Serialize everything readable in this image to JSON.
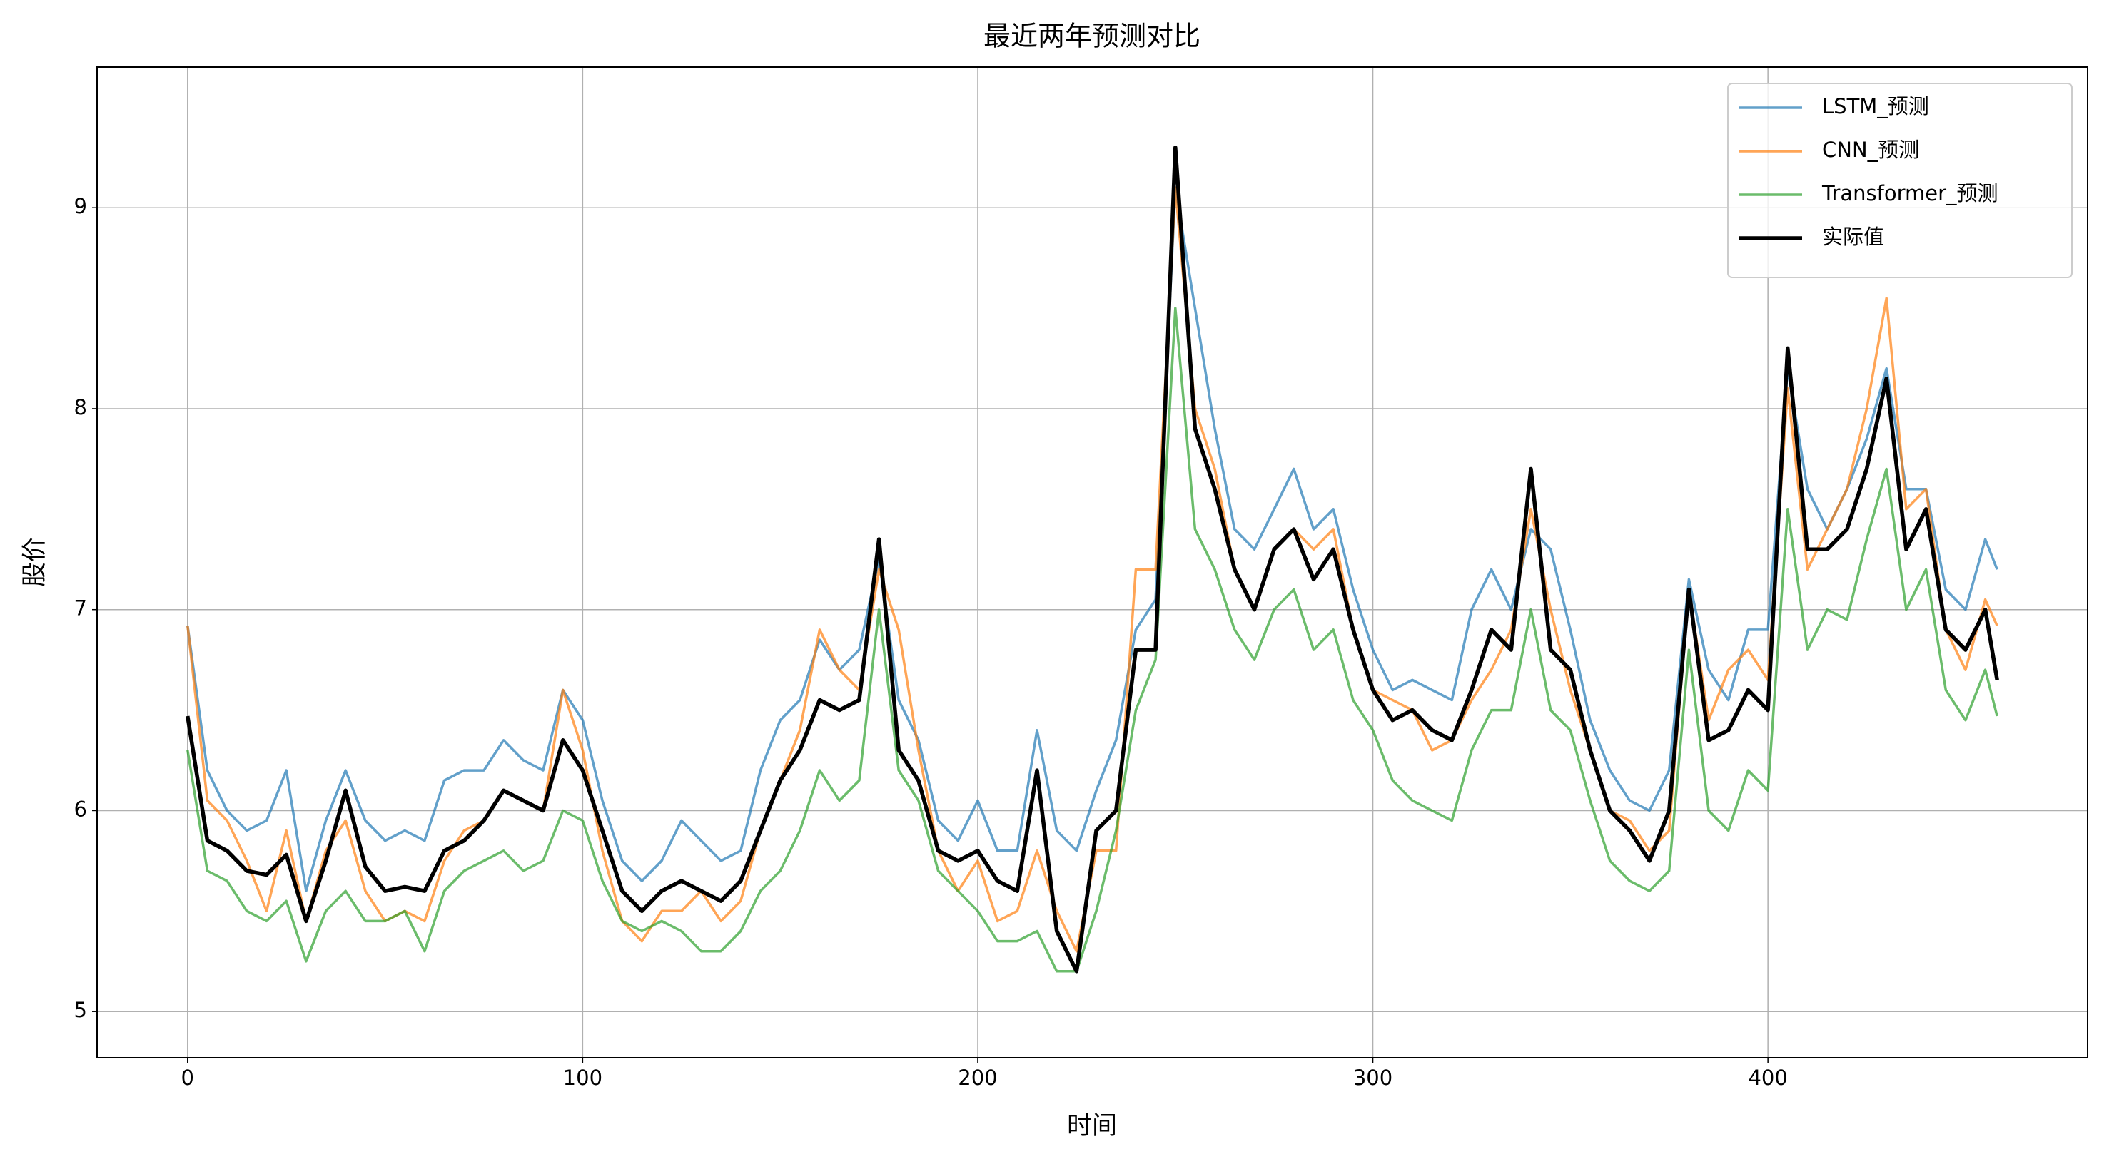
{
  "chart_data": {
    "type": "line",
    "title": "最近两年预测对比",
    "x_label": "时间",
    "y_label": "股价",
    "x": [
      0,
      5,
      10,
      15,
      20,
      25,
      30,
      35,
      40,
      45,
      50,
      55,
      60,
      65,
      70,
      75,
      80,
      85,
      90,
      95,
      100,
      105,
      110,
      115,
      120,
      125,
      130,
      135,
      140,
      145,
      150,
      155,
      160,
      165,
      170,
      175,
      180,
      185,
      190,
      195,
      200,
      205,
      210,
      215,
      220,
      225,
      230,
      235,
      240,
      245,
      250,
      255,
      260,
      265,
      270,
      275,
      280,
      285,
      290,
      295,
      300,
      305,
      310,
      315,
      320,
      325,
      330,
      335,
      340,
      345,
      350,
      355,
      360,
      365,
      370,
      375,
      380,
      385,
      390,
      395,
      400,
      405,
      410,
      415,
      420,
      425,
      430,
      435,
      440,
      445,
      450,
      455,
      458
    ],
    "series": [
      {
        "name": "LSTM_预测",
        "color": "#1f77b4",
        "alpha": 0.7,
        "width": 3.5,
        "values": [
          6.92,
          6.2,
          6.0,
          5.9,
          5.95,
          6.2,
          5.6,
          5.95,
          6.2,
          5.95,
          5.85,
          5.9,
          5.85,
          6.15,
          6.2,
          6.2,
          6.35,
          6.25,
          6.2,
          6.6,
          6.45,
          6.05,
          5.75,
          5.65,
          5.75,
          5.95,
          5.85,
          5.75,
          5.8,
          6.2,
          6.45,
          6.55,
          6.85,
          6.7,
          6.8,
          7.25,
          6.55,
          6.35,
          5.95,
          5.85,
          6.05,
          5.8,
          5.8,
          6.4,
          5.9,
          5.8,
          6.1,
          6.35,
          6.9,
          7.05,
          9.1,
          8.5,
          7.9,
          7.4,
          7.3,
          7.5,
          7.7,
          7.4,
          7.5,
          7.1,
          6.8,
          6.6,
          6.65,
          6.6,
          6.55,
          7.0,
          7.2,
          7.0,
          7.4,
          7.3,
          6.9,
          6.45,
          6.2,
          6.05,
          6.0,
          6.2,
          7.15,
          6.7,
          6.55,
          6.9,
          6.9,
          8.2,
          7.6,
          7.4,
          7.6,
          7.85,
          8.2,
          7.6,
          7.6,
          7.1,
          7.0,
          7.35,
          7.2
        ]
      },
      {
        "name": "CNN_预测",
        "color": "#ff7f0e",
        "alpha": 0.7,
        "width": 3.5,
        "values": [
          6.92,
          6.05,
          5.95,
          5.75,
          5.5,
          5.9,
          5.45,
          5.8,
          5.95,
          5.6,
          5.45,
          5.5,
          5.45,
          5.75,
          5.9,
          5.95,
          6.1,
          6.05,
          6.0,
          6.6,
          6.3,
          5.8,
          5.45,
          5.35,
          5.5,
          5.5,
          5.6,
          5.45,
          5.55,
          5.9,
          6.15,
          6.4,
          6.9,
          6.7,
          6.6,
          7.2,
          6.9,
          6.3,
          5.8,
          5.6,
          5.75,
          5.45,
          5.5,
          5.8,
          5.5,
          5.3,
          5.8,
          5.8,
          7.2,
          7.2,
          9.1,
          8.0,
          7.7,
          7.2,
          7.0,
          7.3,
          7.4,
          7.3,
          7.4,
          6.9,
          6.6,
          6.55,
          6.5,
          6.3,
          6.35,
          6.55,
          6.7,
          6.9,
          7.5,
          7.0,
          6.6,
          6.3,
          6.0,
          5.95,
          5.8,
          5.9,
          7.1,
          6.45,
          6.7,
          6.8,
          6.65,
          8.1,
          7.2,
          7.4,
          7.6,
          8.0,
          8.55,
          7.5,
          7.6,
          6.9,
          6.7,
          7.05,
          6.92
        ]
      },
      {
        "name": "Transformer_预测",
        "color": "#2ca02c",
        "alpha": 0.7,
        "width": 3.5,
        "values": [
          6.3,
          5.7,
          5.65,
          5.5,
          5.45,
          5.55,
          5.25,
          5.5,
          5.6,
          5.45,
          5.45,
          5.5,
          5.3,
          5.6,
          5.7,
          5.75,
          5.8,
          5.7,
          5.75,
          6.0,
          5.95,
          5.65,
          5.45,
          5.4,
          5.45,
          5.4,
          5.3,
          5.3,
          5.4,
          5.6,
          5.7,
          5.9,
          6.2,
          6.05,
          6.15,
          7.0,
          6.2,
          6.05,
          5.7,
          5.6,
          5.5,
          5.35,
          5.35,
          5.4,
          5.2,
          5.2,
          5.5,
          5.9,
          6.5,
          6.75,
          8.5,
          7.4,
          7.2,
          6.9,
          6.75,
          7.0,
          7.1,
          6.8,
          6.9,
          6.55,
          6.4,
          6.15,
          6.05,
          6.0,
          5.95,
          6.3,
          6.5,
          6.5,
          7.0,
          6.5,
          6.4,
          6.05,
          5.75,
          5.65,
          5.6,
          5.7,
          6.8,
          6.0,
          5.9,
          6.2,
          6.1,
          7.5,
          6.8,
          7.0,
          6.95,
          7.35,
          7.7,
          7.0,
          7.2,
          6.6,
          6.45,
          6.7,
          6.47
        ]
      },
      {
        "name": "实际值",
        "color": "#000000",
        "alpha": 1,
        "width": 5.5,
        "values": [
          6.47,
          5.85,
          5.8,
          5.7,
          5.68,
          5.78,
          5.45,
          5.75,
          6.1,
          5.72,
          5.6,
          5.62,
          5.6,
          5.8,
          5.85,
          5.95,
          6.1,
          6.05,
          6.0,
          6.35,
          6.2,
          5.9,
          5.6,
          5.5,
          5.6,
          5.65,
          5.6,
          5.55,
          5.65,
          5.9,
          6.15,
          6.3,
          6.55,
          6.5,
          6.55,
          7.35,
          6.3,
          6.15,
          5.8,
          5.75,
          5.8,
          5.65,
          5.6,
          6.2,
          5.4,
          5.2,
          5.9,
          6.0,
          6.8,
          6.8,
          9.3,
          7.9,
          7.6,
          7.2,
          7.0,
          7.3,
          7.4,
          7.15,
          7.3,
          6.9,
          6.6,
          6.45,
          6.5,
          6.4,
          6.35,
          6.6,
          6.9,
          6.8,
          7.7,
          6.8,
          6.7,
          6.3,
          6.0,
          5.9,
          5.75,
          6.0,
          7.1,
          6.35,
          6.4,
          6.6,
          6.5,
          8.3,
          7.3,
          7.3,
          7.4,
          7.7,
          8.15,
          7.3,
          7.5,
          6.9,
          6.8,
          7.0,
          6.65
        ]
      }
    ],
    "xlim": [
      -22.9,
      480.9
    ],
    "ylim": [
      4.77,
      9.7
    ],
    "xticks": [
      0,
      100,
      200,
      300,
      400
    ],
    "yticks": [
      5,
      6,
      7,
      8,
      9
    ],
    "grid": true,
    "legend": "upper right"
  }
}
